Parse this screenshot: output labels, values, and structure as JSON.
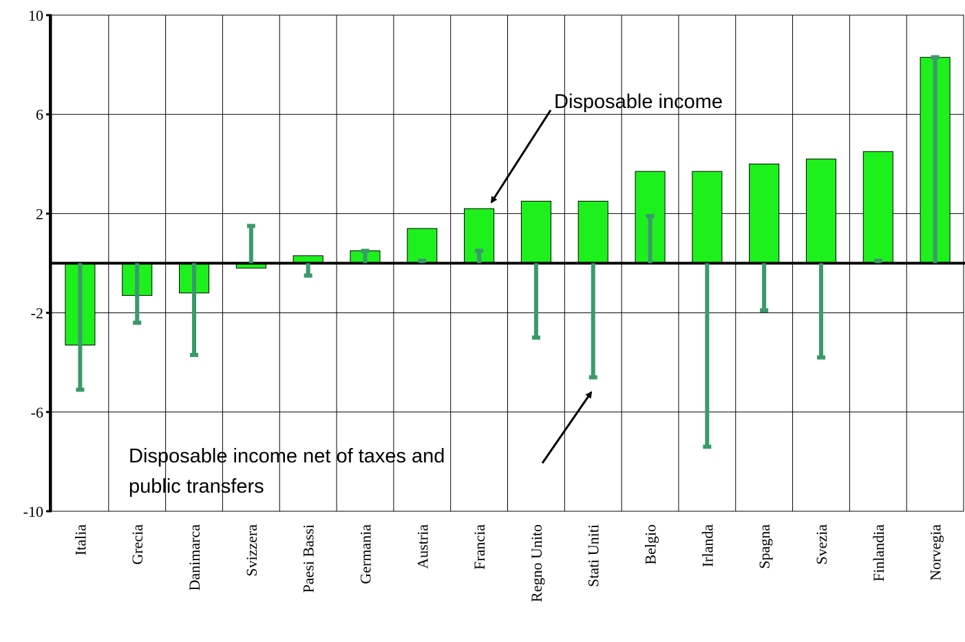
{
  "chart_data": {
    "type": "bar",
    "categories": [
      "Italia",
      "Grecia",
      "Danimarca",
      "Svizzera",
      "Paesi Bassi",
      "Germania",
      "Austria",
      "Francia",
      "Regno Unito",
      "Stati Uniti",
      "Belgio",
      "Irlanda",
      "Spagna",
      "Svezia",
      "Finlandia",
      "Norvegia"
    ],
    "series": [
      {
        "color": "#1ef01e",
        "values": [
          -3.3,
          -1.3,
          -1.2,
          -0.2,
          0.3,
          0.5,
          1.4,
          2.2,
          2.5,
          2.5,
          3.7,
          3.7,
          4.0,
          4.2,
          4.5,
          8.3
        ]
      },
      {
        "color": "#3a9a6a",
        "values": [
          -5.1,
          -2.4,
          -3.7,
          1.5,
          -0.5,
          0.5,
          0.1,
          0.5,
          -3.0,
          -4.6,
          1.9,
          -7.4,
          -1.9,
          -3.8,
          0.1,
          8.3
        ]
      }
    ],
    "ylim": [
      -10,
      10
    ],
    "yticks": [
      10,
      6,
      2,
      -2,
      -6,
      -10
    ],
    "grid": true,
    "annotations": [
      {
        "lines": [
          "Disposable income"
        ]
      },
      {
        "lines": [
          "Disposable income net of taxes and",
          "public transfers"
        ]
      }
    ]
  }
}
